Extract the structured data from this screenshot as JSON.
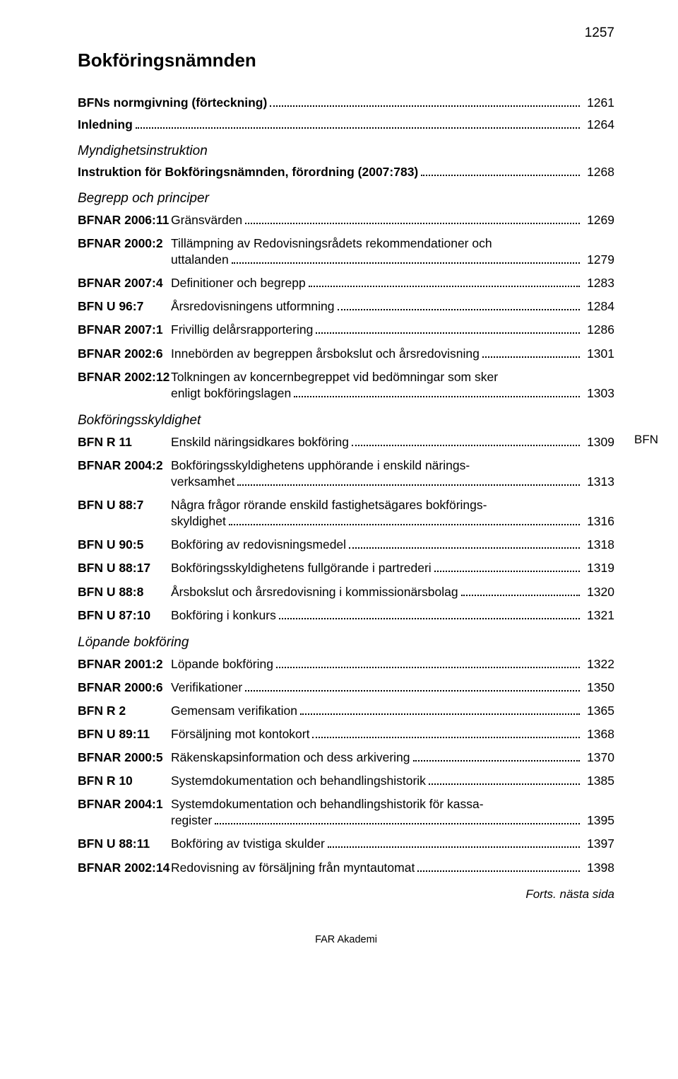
{
  "page_number_top": "1257",
  "main_title": "Bokföringsnämnden",
  "side_tab": "BFN",
  "continuation": "Forts. nästa sida",
  "footer": "FAR Akademi",
  "lines": [
    {
      "kind": "full",
      "label": "BFNs normgivning (förteckning)",
      "page": "1261",
      "bold": true
    },
    {
      "kind": "full",
      "label": "Inledning",
      "page": "1264",
      "bold": true
    },
    {
      "kind": "section",
      "label": "Myndighetsinstruktion"
    },
    {
      "kind": "full",
      "label": "Instruktion för Bokföringsnämnden, förordning (2007:783)",
      "page": "1268",
      "bold": true
    },
    {
      "kind": "section",
      "label": "Begrepp och principer"
    },
    {
      "kind": "row",
      "code": "BFNAR 2006:11",
      "label": "Gränsvärden",
      "page": "1269"
    },
    {
      "kind": "multiline",
      "code": "BFNAR 2000:2",
      "label1": "Tillämpning av Redovisningsrådets rekommendationer och",
      "label2": "uttalanden",
      "page": "1279",
      "gap": true
    },
    {
      "kind": "row",
      "code": "BFNAR 2007:4",
      "label": "Definitioner och begrepp",
      "page": "1283",
      "gap": true
    },
    {
      "kind": "row",
      "code": "BFN U 96:7",
      "label": "Årsredovisningens utformning",
      "page": "1284",
      "gap": true
    },
    {
      "kind": "row",
      "code": "BFNAR 2007:1",
      "label": "Frivillig delårsrapportering",
      "page": "1286",
      "gap": true
    },
    {
      "kind": "row",
      "code": "BFNAR 2002:6",
      "label": "Innebörden av begreppen årsbokslut och årsredovisning",
      "page": "1301",
      "gap": true
    },
    {
      "kind": "multiline",
      "code": "BFNAR 2002:12",
      "label1": "Tolkningen av koncernbegreppet vid bedömningar som sker",
      "label2": "enligt bokföringslagen",
      "page": "1303",
      "gap": true
    },
    {
      "kind": "section",
      "label": "Bokföringsskyldighet"
    },
    {
      "kind": "row",
      "code": "BFN R 11",
      "label": "Enskild näringsidkares bokföring",
      "page": "1309"
    },
    {
      "kind": "multiline",
      "code": "BFNAR 2004:2",
      "label1": "Bokföringsskyldighetens upphörande i enskild närings-",
      "label2": "verksamhet",
      "page": "1313",
      "gap": true
    },
    {
      "kind": "multiline",
      "code": "BFN U 88:7",
      "label1": "Några frågor rörande enskild fastighetsägares bokförings-",
      "label2": "skyldighet",
      "page": "1316",
      "gap": true
    },
    {
      "kind": "row",
      "code": "BFN U 90:5",
      "label": "Bokföring av redovisningsmedel",
      "page": "1318",
      "gap": true
    },
    {
      "kind": "row",
      "code": "BFN U 88:17",
      "label": "Bokföringsskyldighetens fullgörande i partrederi",
      "page": "1319",
      "gap": true
    },
    {
      "kind": "row",
      "code": "BFN U 88:8",
      "label": "Årsbokslut och årsredovisning i kommissionärsbolag",
      "page": "1320",
      "gap": true
    },
    {
      "kind": "row",
      "code": "BFN U 87:10",
      "label": "Bokföring i konkurs",
      "page": "1321",
      "gap": true
    },
    {
      "kind": "section",
      "label": "Löpande bokföring"
    },
    {
      "kind": "row",
      "code": "BFNAR 2001:2",
      "label": "Löpande bokföring",
      "page": "1322"
    },
    {
      "kind": "row",
      "code": "BFNAR 2000:6",
      "label": "Verifikationer",
      "page": "1350",
      "gap": true
    },
    {
      "kind": "row",
      "code": "BFN R 2",
      "label": "Gemensam verifikation",
      "page": "1365",
      "gap": true
    },
    {
      "kind": "row",
      "code": "BFN U 89:11",
      "label": "Försäljning mot kontokort",
      "page": "1368",
      "gap": true
    },
    {
      "kind": "row",
      "code": "BFNAR 2000:5",
      "label": "Räkenskapsinformation och dess arkivering",
      "page": "1370",
      "gap": true
    },
    {
      "kind": "row",
      "code": "BFN R 10",
      "label": "Systemdokumentation och behandlingshistorik",
      "page": "1385",
      "gap": true
    },
    {
      "kind": "multiline",
      "code": "BFNAR 2004:1",
      "label1": "Systemdokumentation och behandlingshistorik för kassa-",
      "label2": "register",
      "page": "1395",
      "gap": true
    },
    {
      "kind": "row",
      "code": "BFN U 88:11",
      "label": "Bokföring av tvistiga skulder",
      "page": "1397",
      "gap": true
    },
    {
      "kind": "row",
      "code": "BFNAR 2002:14",
      "label": "Redovisning av försäljning från myntautomat",
      "page": "1398",
      "gap": true
    }
  ]
}
